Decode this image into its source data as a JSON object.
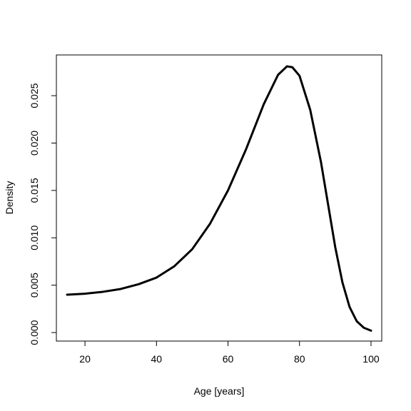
{
  "chart_data": {
    "type": "line",
    "xlabel": "Age [years]",
    "ylabel": "Density",
    "xlim": [
      12,
      103
    ],
    "ylim": [
      -0.0009,
      0.0293
    ],
    "x_ticks": [
      20,
      40,
      60,
      80,
      100
    ],
    "y_ticks": [
      0.0,
      0.005,
      0.01,
      0.015,
      0.02,
      0.025
    ],
    "x_tick_labels": [
      "20",
      "40",
      "60",
      "80",
      "100"
    ],
    "y_tick_labels": [
      "0.000",
      "0.005",
      "0.010",
      "0.015",
      "0.020",
      "0.025"
    ],
    "grid": false,
    "line_color": "#000000",
    "series": [
      {
        "x": [
          15,
          20,
          25,
          30,
          35,
          40,
          45,
          50,
          55,
          60,
          65,
          70,
          74,
          76.5,
          78,
          80,
          83,
          86,
          88,
          90,
          92,
          94,
          96,
          98,
          100
        ],
        "y": [
          0.004,
          0.0041,
          0.0043,
          0.0046,
          0.0051,
          0.0058,
          0.007,
          0.0088,
          0.0115,
          0.015,
          0.0193,
          0.0241,
          0.0272,
          0.0281,
          0.028,
          0.0271,
          0.0235,
          0.018,
          0.0135,
          0.009,
          0.0053,
          0.0027,
          0.0012,
          0.0005,
          0.0002
        ]
      }
    ]
  }
}
